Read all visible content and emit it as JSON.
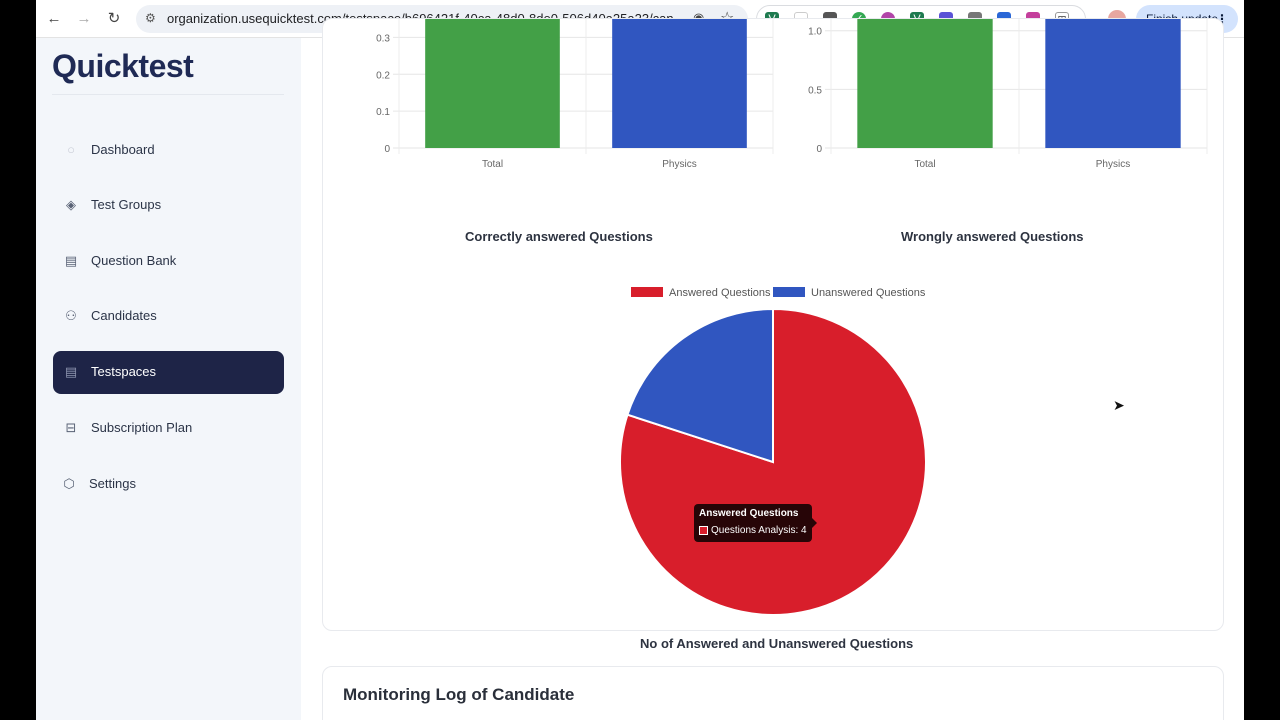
{
  "browser": {
    "url": "organization.usequicktest.com/testspace/b696421f-40ca-48d0-8de0-506d40a25a23/can...",
    "finish_update": "Finish update"
  },
  "app": {
    "logo": "Quicktest"
  },
  "sidebar": {
    "items": [
      {
        "label": "Dashboard",
        "icon": "dashboard-icon",
        "active": false
      },
      {
        "label": "Test Groups",
        "icon": "layers-icon",
        "active": false
      },
      {
        "label": "Question Bank",
        "icon": "book-icon",
        "active": false
      },
      {
        "label": "Candidates",
        "icon": "users-icon",
        "active": false
      },
      {
        "label": "Testspaces",
        "icon": "document-icon",
        "active": true
      },
      {
        "label": "Subscription Plan",
        "icon": "money-icon",
        "active": false
      },
      {
        "label": "Settings",
        "icon": "gear-icon",
        "active": false
      }
    ]
  },
  "colors": {
    "green": "#43a047",
    "blue": "#3056c0",
    "red": "#d81e2b",
    "active_nav": "#1e2447"
  },
  "chart_data": [
    {
      "type": "bar",
      "title": "Correctly answered Questions",
      "categories": [
        "Total",
        "Physics"
      ],
      "y_ticks": [
        "0",
        "0.1",
        "0.2",
        "0.3"
      ],
      "ylim_visible": [
        0,
        0.35
      ],
      "series": [
        {
          "name": "Correct",
          "colors": [
            "#43a047",
            "#3056c0"
          ]
        }
      ]
    },
    {
      "type": "bar",
      "title": "Wrongly answered Questions",
      "categories": [
        "Total",
        "Physics"
      ],
      "y_ticks": [
        "0",
        "0.5",
        "1.0"
      ],
      "ylim_visible": [
        0,
        1.1
      ],
      "series": [
        {
          "name": "Wrong",
          "colors": [
            "#43a047",
            "#3056c0"
          ]
        }
      ]
    },
    {
      "type": "pie",
      "title": "No of Answered and Unanswered Questions",
      "legend": [
        "Answered Questions",
        "Unanswered Questions"
      ],
      "values": [
        4,
        1
      ],
      "colors": [
        "#d81e2b",
        "#3056c0"
      ],
      "tooltip": {
        "title": "Answered Questions",
        "body": "Questions Analysis: 4"
      }
    }
  ],
  "monitoring": {
    "title": "Monitoring Log of Candidate"
  }
}
